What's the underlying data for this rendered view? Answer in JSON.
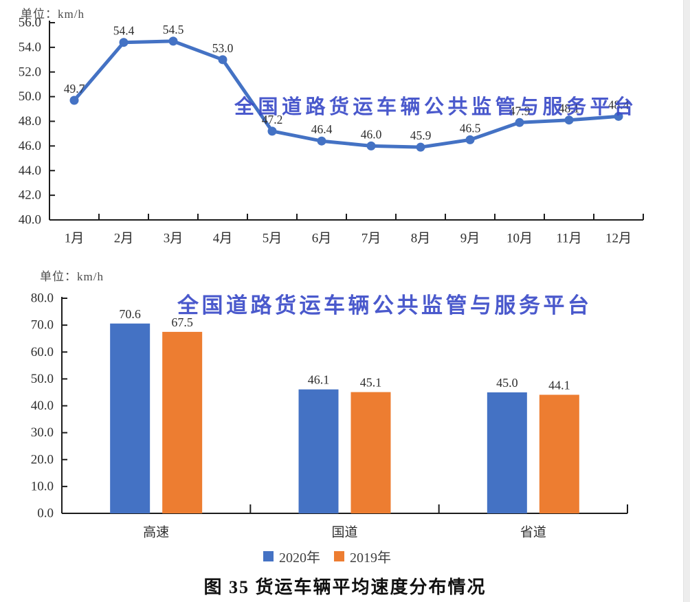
{
  "watermark": {
    "text": "全国道路货运车辆公共监管与服务平台",
    "color": "#3b4cc8"
  },
  "caption": {
    "text": "图 35  货运车辆平均速度分布情况"
  },
  "axis_color": "#1c1c1c",
  "label_color": "#3c3c3c",
  "chart_data": [
    {
      "type": "line",
      "title": "",
      "unit_label": "单位：km/h",
      "xlabel": "",
      "ylabel": "",
      "categories": [
        "1月",
        "2月",
        "3月",
        "4月",
        "5月",
        "6月",
        "7月",
        "8月",
        "9月",
        "10月",
        "11月",
        "12月"
      ],
      "series": [
        {
          "name": "货运车辆平均速度",
          "color": "#4472C4",
          "values": [
            49.7,
            54.4,
            54.5,
            53.0,
            47.2,
            46.4,
            46.0,
            45.9,
            46.5,
            47.9,
            48.1,
            48.4
          ]
        }
      ],
      "ylim": [
        40.0,
        56.0
      ],
      "ytick_step": 2.0,
      "grid": false,
      "legend_position": "none",
      "data_labels": true
    },
    {
      "type": "bar",
      "title": "",
      "unit_label": "单位：km/h",
      "xlabel": "",
      "ylabel": "",
      "categories": [
        "高速",
        "国道",
        "省道"
      ],
      "series": [
        {
          "name": "2020年",
          "color": "#4472C4",
          "values": [
            70.6,
            46.1,
            45.0
          ]
        },
        {
          "name": "2019年",
          "color": "#ED7D31",
          "values": [
            67.5,
            45.1,
            44.1
          ]
        }
      ],
      "ylim": [
        0.0,
        80.0
      ],
      "ytick_step": 10.0,
      "grid": false,
      "legend_position": "bottom",
      "data_labels": true
    }
  ]
}
